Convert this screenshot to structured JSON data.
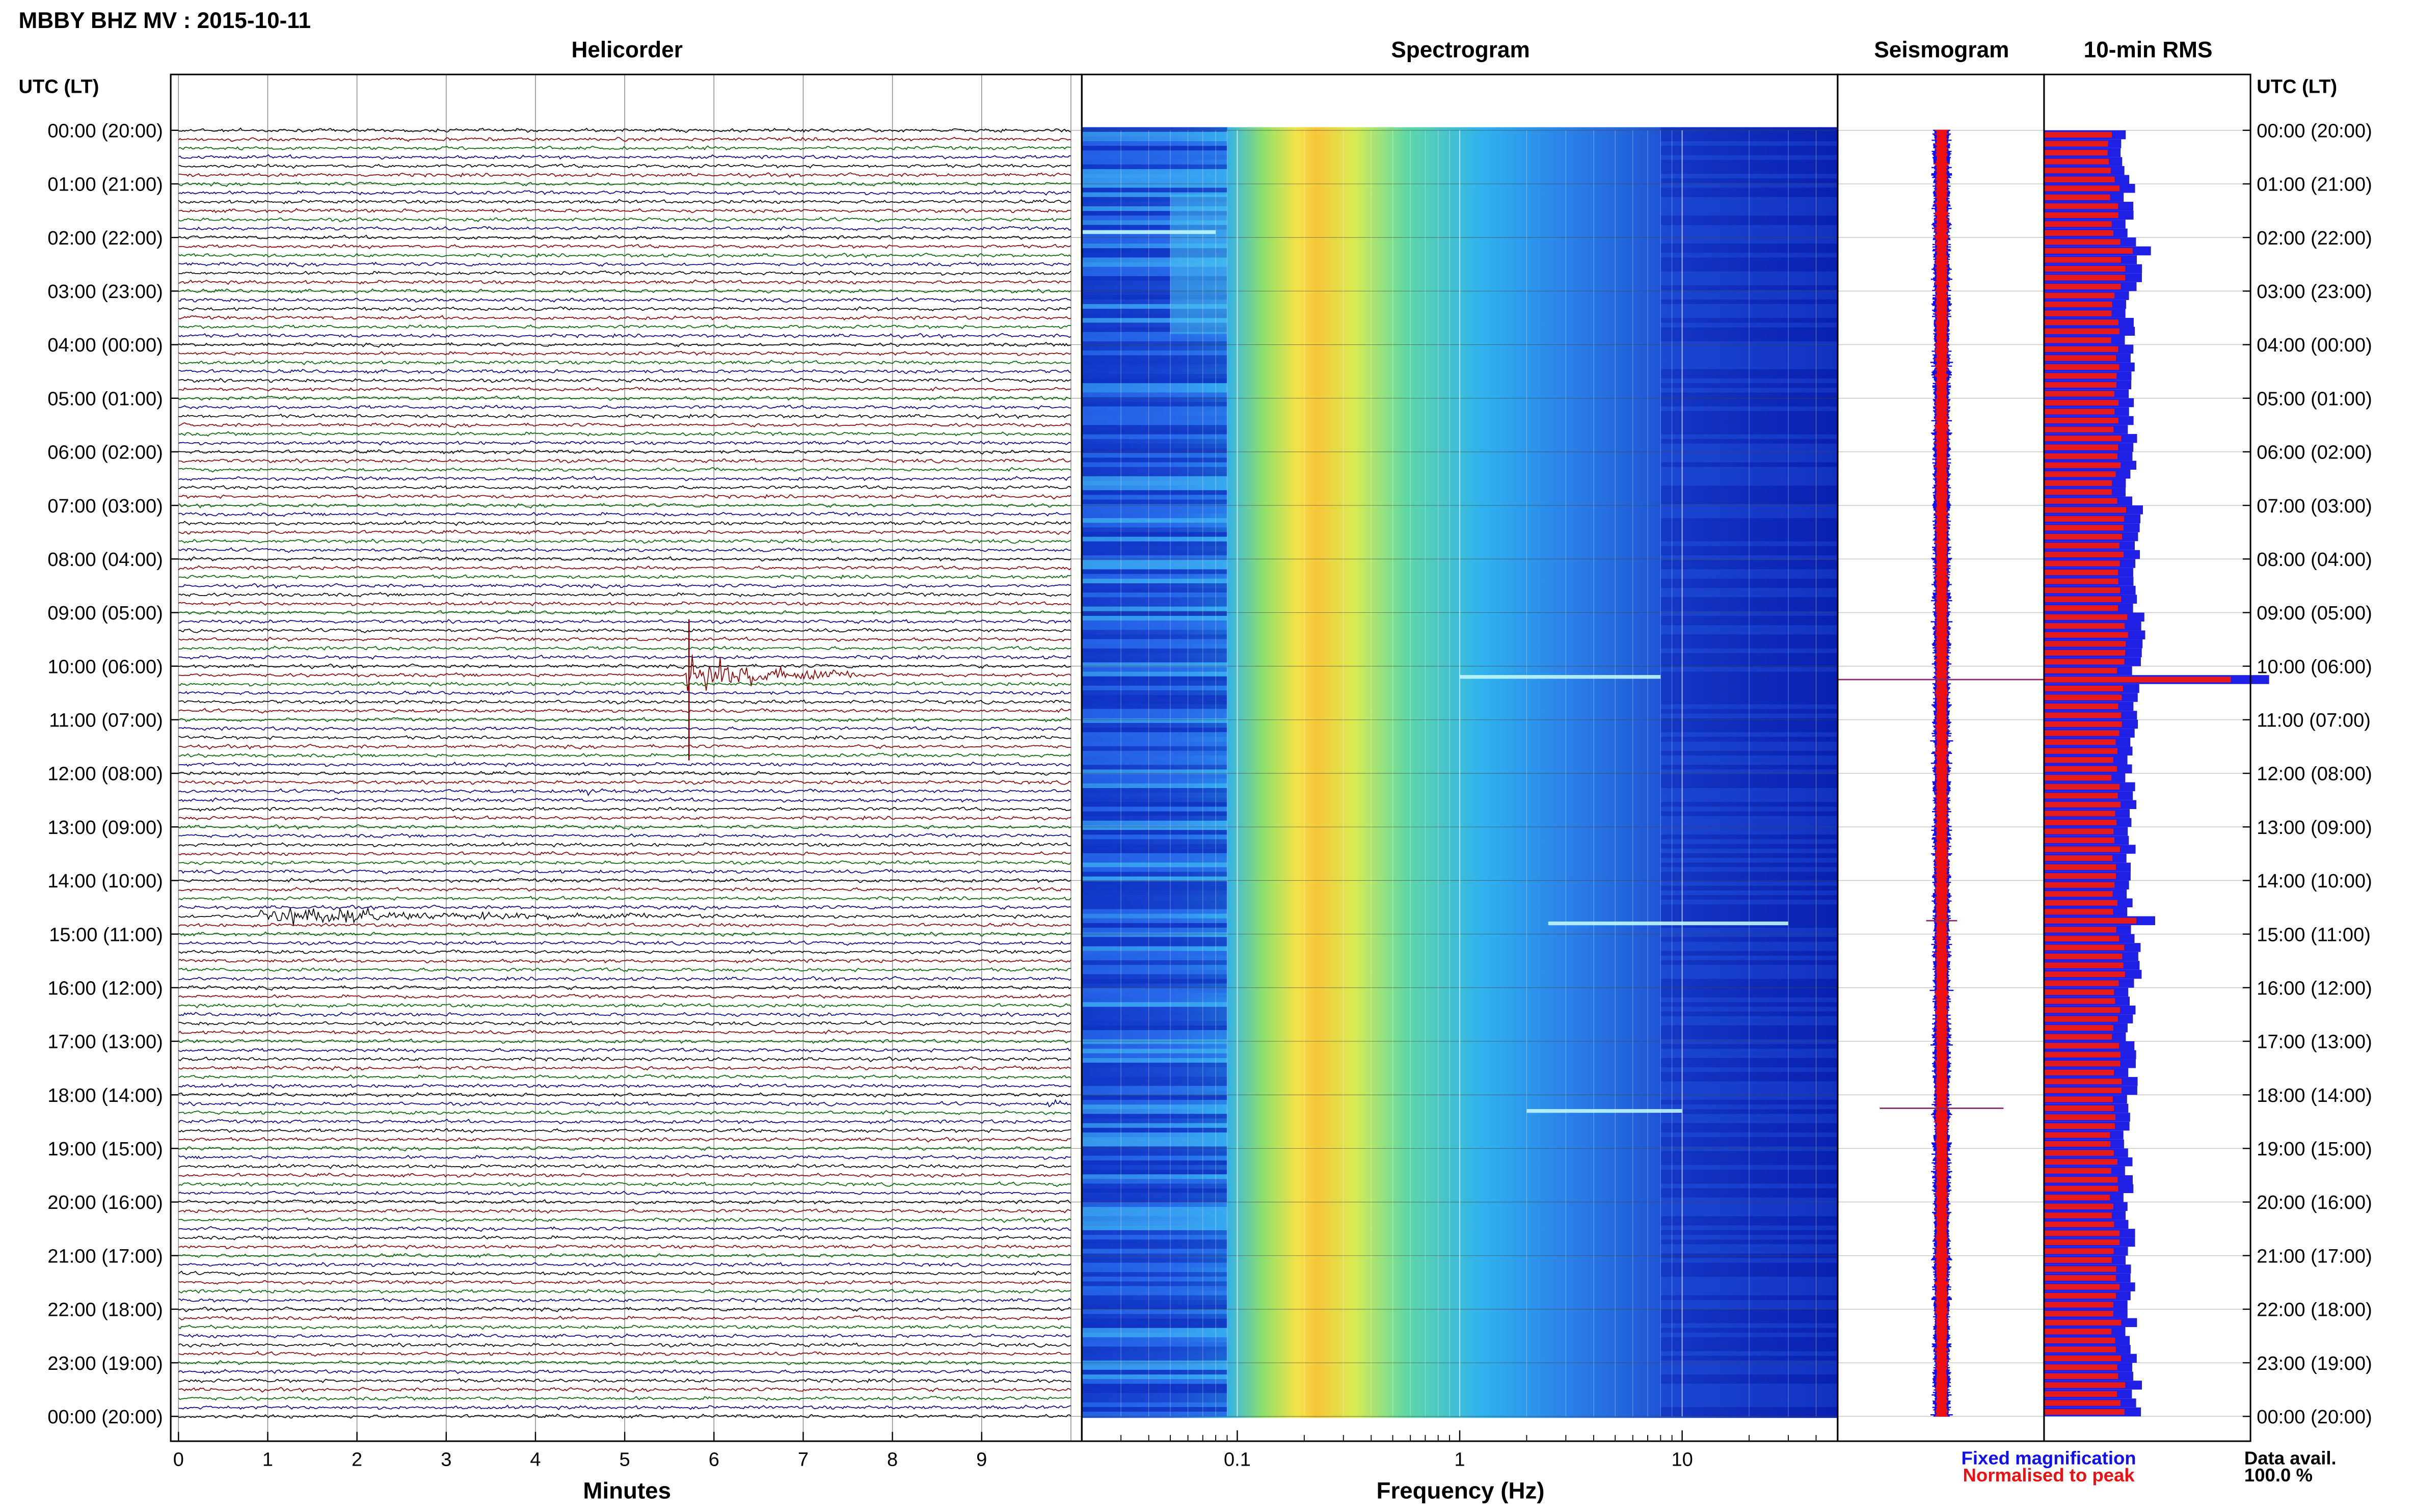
{
  "header": {
    "title": "MBBY BHZ MV : 2015-10-11",
    "utc_label": "UTC (LT)"
  },
  "panels": {
    "helicorder": "Helicorder",
    "spectrogram": "Spectrogram",
    "seismogram": "Seismogram",
    "rms": "10-min RMS"
  },
  "legend": {
    "fixed": "Fixed magnification",
    "normalised": "Normalised to peak",
    "fixed_color": "#1010ee",
    "normalised_color": "#ee1010"
  },
  "data_avail": {
    "label": "Data avail.",
    "value": "100.0 %"
  },
  "colors": {
    "trace_cycle": [
      "#000000",
      "#8b0000",
      "#006400",
      "#00008b"
    ],
    "rms_fixed": "#1f1fe6",
    "rms_normalised": "#e61a1a",
    "event_trace": "#8b0000",
    "spectrogram_low": "#0a1ea0",
    "spectrogram_high": "#ff8c00"
  },
  "chart_data": [
    {
      "type": "helicorder",
      "panel": "Helicorder",
      "xlabel": "Minutes",
      "x_ticks": [
        "0",
        "1",
        "2",
        "3",
        "4",
        "5",
        "6",
        "7",
        "8",
        "9"
      ],
      "xlim": [
        0,
        10
      ],
      "row_minutes": 10,
      "rows": 145,
      "y_tick_labels": [
        "00:00 (20:00)",
        "01:00 (21:00)",
        "02:00 (22:00)",
        "03:00 (23:00)",
        "04:00 (00:00)",
        "05:00 (01:00)",
        "06:00 (02:00)",
        "07:00 (03:00)",
        "08:00 (04:00)",
        "09:00 (05:00)",
        "10:00 (06:00)",
        "11:00 (07:00)",
        "12:00 (08:00)",
        "13:00 (09:00)",
        "14:00 (10:00)",
        "15:00 (11:00)",
        "16:00 (12:00)",
        "17:00 (13:00)",
        "18:00 (14:00)",
        "19:00 (15:00)",
        "20:00 (16:00)",
        "21:00 (17:00)",
        "22:00 (18:00)",
        "23:00 (19:00)",
        "00:00 (20:00)"
      ],
      "events": [
        {
          "row": 61,
          "start_min": 5.7,
          "end_min": 7.7,
          "color": "#8b0000",
          "amplitude": 3.5
        },
        {
          "row": 88,
          "start_min": 0.9,
          "end_min": 6.6,
          "color": "#000000",
          "amplitude": 1.5
        },
        {
          "row": 109,
          "start_min": 9.75,
          "end_min": 9.95,
          "color": "#00008b",
          "amplitude": 2.5
        },
        {
          "row": 74,
          "start_min": 4.5,
          "end_min": 4.8,
          "color": "#00008b",
          "amplitude": 1.2
        }
      ]
    },
    {
      "type": "heatmap",
      "panel": "Spectrogram",
      "xlabel": "Frequency (Hz)",
      "x_scale": "log",
      "x_ticks": [
        "0.1",
        "1",
        "10"
      ],
      "xlim": [
        0.02,
        50
      ],
      "peak_band_hz": [
        0.15,
        0.3
      ],
      "events": [
        {
          "hour": 10.2,
          "f_min": 1.0,
          "f_max": 8.0
        },
        {
          "hour": 14.8,
          "f_min": 2.5,
          "f_max": 30.0
        },
        {
          "hour": 18.3,
          "f_min": 2.0,
          "f_max": 10.0
        },
        {
          "hour": 1.9,
          "f_min": 0.02,
          "f_max": 0.08
        }
      ]
    },
    {
      "type": "seismogram",
      "panel": "Seismogram",
      "series": [
        {
          "name": "Fixed magnification",
          "color": "#1010ee"
        },
        {
          "name": "Normalised to peak",
          "color": "#ee1010"
        }
      ],
      "spikes": [
        {
          "hour": 10.25,
          "extent": 1.0
        },
        {
          "hour": 14.75,
          "extent": 0.15
        },
        {
          "hour": 18.25,
          "extent": 0.6
        }
      ]
    },
    {
      "type": "bar",
      "panel": "10-min RMS",
      "orientation": "horizontal",
      "bins": 144,
      "series": [
        {
          "name": "Fixed magnification",
          "color": "#1f1fe6"
        },
        {
          "name": "Normalised to peak",
          "color": "#e61a1a"
        }
      ],
      "hourly_level": [
        0.38,
        0.4,
        0.46,
        0.4,
        0.4,
        0.41,
        0.41,
        0.45,
        0.44,
        0.45,
        1.0,
        0.42,
        0.41,
        0.4,
        0.4,
        0.43,
        0.4,
        0.41,
        0.4,
        0.39,
        0.4,
        0.4,
        0.41,
        0.43
      ],
      "peaks": [
        {
          "bin": 61,
          "level": 1.0
        },
        {
          "bin": 88,
          "level": 0.52
        },
        {
          "bin": 13,
          "level": 0.5
        }
      ]
    }
  ]
}
